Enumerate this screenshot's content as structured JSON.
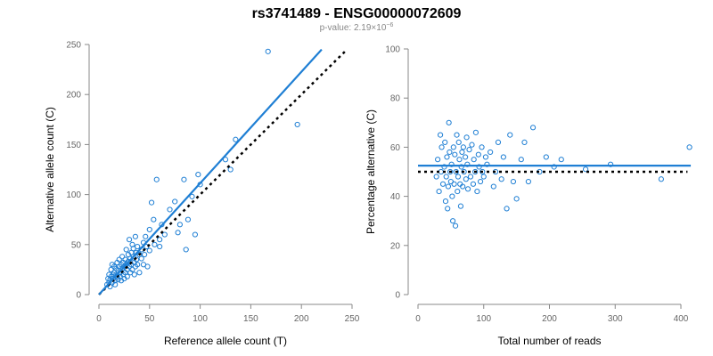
{
  "title": "rs3741489 - ENSG00000072609",
  "subtitle_prefix": "p-value: 2.19×10",
  "subtitle_exponent": "−6",
  "colors": {
    "points": "#1f7fd4",
    "fit_line": "#1f7fd4",
    "reference_line": "#000000"
  },
  "chart_data": [
    {
      "type": "scatter",
      "title": "",
      "xlabel": "Reference allele count (T)",
      "ylabel": "Alternative allele count (C)",
      "xlim": [
        0,
        250
      ],
      "ylim": [
        0,
        250
      ],
      "xticks": [
        0,
        50,
        100,
        150,
        200,
        250
      ],
      "yticks": [
        0,
        50,
        100,
        150,
        200,
        250
      ],
      "fit_line": {
        "x": [
          0,
          220
        ],
        "y": [
          0,
          245
        ]
      },
      "reference_line": {
        "x": [
          0,
          245
        ],
        "y": [
          0,
          245
        ],
        "style": "dotted"
      },
      "points": [
        [
          8,
          10
        ],
        [
          9,
          16
        ],
        [
          10,
          12
        ],
        [
          10,
          20
        ],
        [
          11,
          8
        ],
        [
          11,
          15
        ],
        [
          12,
          18
        ],
        [
          12,
          25
        ],
        [
          13,
          12
        ],
        [
          13,
          30
        ],
        [
          14,
          20
        ],
        [
          14,
          16
        ],
        [
          15,
          22
        ],
        [
          15,
          28
        ],
        [
          16,
          10
        ],
        [
          16,
          14
        ],
        [
          17,
          26
        ],
        [
          17,
          20
        ],
        [
          18,
          18
        ],
        [
          18,
          32
        ],
        [
          19,
          15
        ],
        [
          19,
          24
        ],
        [
          20,
          28
        ],
        [
          20,
          35
        ],
        [
          21,
          18
        ],
        [
          21,
          22
        ],
        [
          22,
          30
        ],
        [
          22,
          14
        ],
        [
          23,
          26
        ],
        [
          23,
          38
        ],
        [
          24,
          20
        ],
        [
          24,
          32
        ],
        [
          25,
          28
        ],
        [
          25,
          16
        ],
        [
          26,
          35
        ],
        [
          26,
          22
        ],
        [
          27,
          45
        ],
        [
          27,
          30
        ],
        [
          28,
          25
        ],
        [
          28,
          18
        ],
        [
          29,
          40
        ],
        [
          29,
          33
        ],
        [
          30,
          28
        ],
        [
          30,
          55
        ],
        [
          31,
          22
        ],
        [
          31,
          36
        ],
        [
          32,
          42
        ],
        [
          32,
          30
        ],
        [
          33,
          50
        ],
        [
          33,
          25
        ],
        [
          34,
          38
        ],
        [
          34,
          46
        ],
        [
          35,
          32
        ],
        [
          35,
          20
        ],
        [
          36,
          58
        ],
        [
          36,
          28
        ],
        [
          37,
          42
        ],
        [
          37,
          35
        ],
        [
          38,
          48
        ],
        [
          38,
          30
        ],
        [
          40,
          40
        ],
        [
          40,
          22
        ],
        [
          42,
          45
        ],
        [
          42,
          36
        ],
        [
          44,
          30
        ],
        [
          44,
          52
        ],
        [
          45,
          40
        ],
        [
          46,
          58
        ],
        [
          47,
          48
        ],
        [
          48,
          28
        ],
        [
          50,
          65
        ],
        [
          50,
          44
        ],
        [
          52,
          92
        ],
        [
          54,
          75
        ],
        [
          55,
          50
        ],
        [
          57,
          115
        ],
        [
          60,
          55
        ],
        [
          60,
          48
        ],
        [
          62,
          70
        ],
        [
          65,
          60
        ],
        [
          70,
          85
        ],
        [
          75,
          93
        ],
        [
          78,
          62
        ],
        [
          80,
          70
        ],
        [
          84,
          115
        ],
        [
          86,
          45
        ],
        [
          88,
          75
        ],
        [
          92,
          98
        ],
        [
          95,
          60
        ],
        [
          98,
          120
        ],
        [
          100,
          110
        ],
        [
          125,
          135
        ],
        [
          130,
          125
        ],
        [
          135,
          155
        ],
        [
          167,
          243
        ],
        [
          196,
          170
        ]
      ]
    },
    {
      "type": "scatter",
      "title": "",
      "xlabel": "Total number of reads",
      "ylabel": "Percentage alternative (C)",
      "xlim": [
        0,
        400
      ],
      "ylim": [
        0,
        100
      ],
      "xticks": [
        0,
        100,
        200,
        300,
        400
      ],
      "yticks": [
        0,
        20,
        40,
        60,
        80,
        100
      ],
      "fit_line": {
        "x": [
          0,
          415
        ],
        "y": [
          52.5,
          52.5
        ]
      },
      "reference_line": {
        "x": [
          0,
          410
        ],
        "y": [
          50,
          50
        ],
        "style": "dotted"
      },
      "points": [
        [
          28,
          48
        ],
        [
          30,
          55
        ],
        [
          32,
          42
        ],
        [
          34,
          65
        ],
        [
          35,
          50
        ],
        [
          36,
          60
        ],
        [
          38,
          45
        ],
        [
          40,
          52
        ],
        [
          41,
          62
        ],
        [
          42,
          38
        ],
        [
          43,
          48
        ],
        [
          44,
          56
        ],
        [
          45,
          35
        ],
        [
          46,
          44
        ],
        [
          47,
          70
        ],
        [
          48,
          58
        ],
        [
          49,
          50
        ],
        [
          50,
          46
        ],
        [
          51,
          53
        ],
        [
          52,
          40
        ],
        [
          53,
          30
        ],
        [
          54,
          60
        ],
        [
          55,
          45
        ],
        [
          56,
          57
        ],
        [
          57,
          28
        ],
        [
          58,
          50
        ],
        [
          59,
          65
        ],
        [
          60,
          42
        ],
        [
          61,
          48
        ],
        [
          62,
          62
        ],
        [
          63,
          55
        ],
        [
          64,
          45
        ],
        [
          65,
          36
        ],
        [
          66,
          52
        ],
        [
          67,
          58
        ],
        [
          68,
          44
        ],
        [
          69,
          60
        ],
        [
          70,
          50
        ],
        [
          72,
          56
        ],
        [
          73,
          47
        ],
        [
          74,
          64
        ],
        [
          75,
          53
        ],
        [
          76,
          43
        ],
        [
          78,
          59
        ],
        [
          80,
          48
        ],
        [
          82,
          61
        ],
        [
          84,
          45
        ],
        [
          85,
          55
        ],
        [
          87,
          50
        ],
        [
          88,
          66
        ],
        [
          90,
          42
        ],
        [
          92,
          57
        ],
        [
          93,
          52
        ],
        [
          95,
          46
        ],
        [
          97,
          60
        ],
        [
          98,
          50
        ],
        [
          100,
          48
        ],
        [
          103,
          56
        ],
        [
          105,
          53
        ],
        [
          110,
          58
        ],
        [
          115,
          44
        ],
        [
          118,
          50
        ],
        [
          122,
          62
        ],
        [
          127,
          47
        ],
        [
          130,
          56
        ],
        [
          135,
          35
        ],
        [
          140,
          65
        ],
        [
          145,
          46
        ],
        [
          150,
          39
        ],
        [
          157,
          55
        ],
        [
          162,
          62
        ],
        [
          168,
          46
        ],
        [
          175,
          68
        ],
        [
          185,
          50
        ],
        [
          195,
          56
        ],
        [
          207,
          52
        ],
        [
          218,
          55
        ],
        [
          255,
          51
        ],
        [
          293,
          53
        ],
        [
          370,
          47
        ],
        [
          413,
          60
        ]
      ]
    }
  ]
}
